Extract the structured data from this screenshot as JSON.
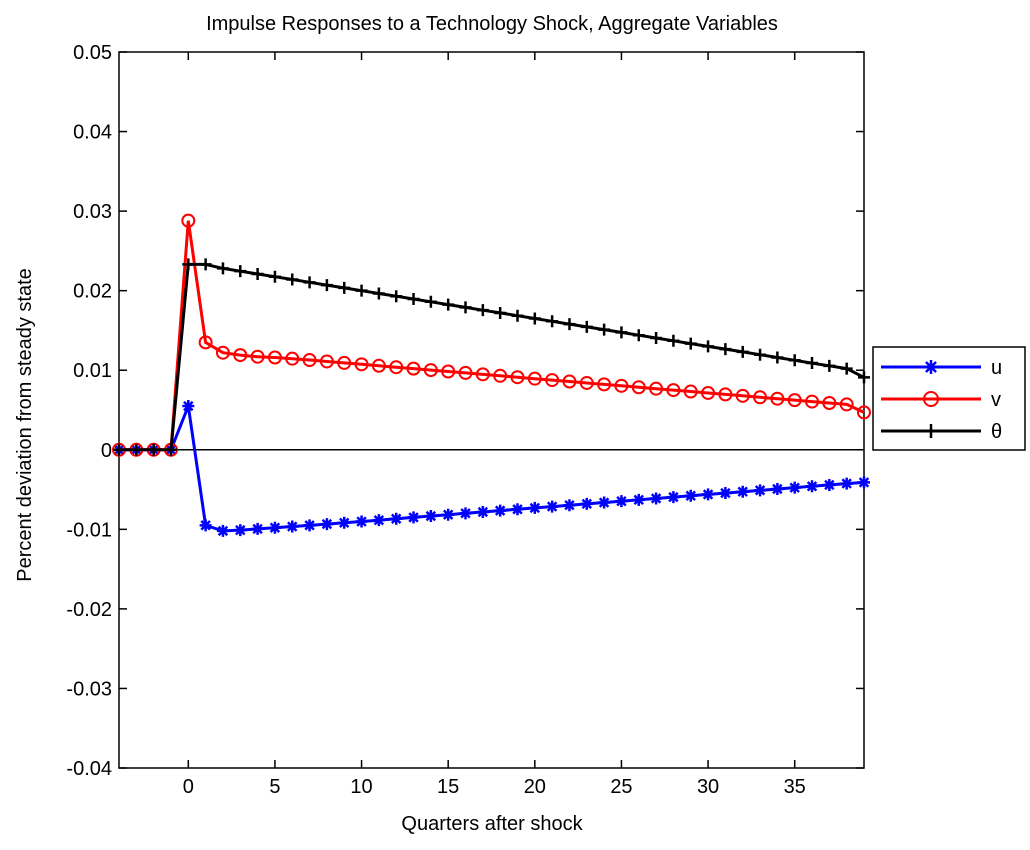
{
  "chart_data": {
    "type": "line",
    "title": "Impulse Responses to a Technology Shock, Aggregate Variables",
    "xlabel": "Quarters after shock",
    "ylabel": "Percent deviation from steady state",
    "xlim": [
      -4,
      39
    ],
    "ylim": [
      -0.04,
      0.05
    ],
    "xticks": [
      0,
      5,
      10,
      15,
      20,
      25,
      30,
      35
    ],
    "yticks": [
      -0.04,
      -0.03,
      -0.02,
      -0.01,
      0,
      0.01,
      0.02,
      0.03,
      0.04,
      0.05
    ],
    "ytick_labels": [
      "-0.04",
      "-0.03",
      "-0.02",
      "-0.01",
      "0",
      "0.01",
      "0.02",
      "0.03",
      "0.04",
      "0.05"
    ],
    "zero_line": true,
    "grid": false,
    "legend_position": "outside-right",
    "x": [
      -4,
      -3,
      -2,
      -1,
      0,
      1,
      2,
      3,
      4,
      5,
      6,
      7,
      8,
      9,
      10,
      11,
      12,
      13,
      14,
      15,
      16,
      17,
      18,
      19,
      20,
      21,
      22,
      23,
      24,
      25,
      26,
      27,
      28,
      29,
      30,
      31,
      32,
      33,
      34,
      35,
      36,
      37,
      38,
      39
    ],
    "series": [
      {
        "name": "u",
        "color": "#0000ff",
        "marker": "star",
        "values": [
          0,
          0,
          0,
          0,
          0.0055,
          -0.0095,
          -0.0102,
          -0.0101,
          -0.00995,
          -0.0098,
          -0.00965,
          -0.0095,
          -0.00934,
          -0.00918,
          -0.00902,
          -0.00885,
          -0.00867,
          -0.0085,
          -0.00833,
          -0.00816,
          -0.00799,
          -0.00782,
          -0.00765,
          -0.00748,
          -0.00731,
          -0.00714,
          -0.00697,
          -0.0068,
          -0.00663,
          -0.00646,
          -0.00629,
          -0.00612,
          -0.00595,
          -0.00578,
          -0.00561,
          -0.00544,
          -0.00527,
          -0.0051,
          -0.00493,
          -0.00476,
          -0.00459,
          -0.00442,
          -0.00425,
          -0.0041
        ]
      },
      {
        "name": "v",
        "color": "#ff0000",
        "marker": "circle",
        "values": [
          0,
          0,
          0,
          0,
          0.0288,
          0.0135,
          0.0122,
          0.0119,
          0.0117,
          0.0116,
          0.01145,
          0.01128,
          0.0111,
          0.01092,
          0.01074,
          0.01056,
          0.01038,
          0.0102,
          0.01002,
          0.00984,
          0.00966,
          0.00948,
          0.0093,
          0.00912,
          0.00894,
          0.00876,
          0.00858,
          0.0084,
          0.00822,
          0.00804,
          0.00786,
          0.00768,
          0.0075,
          0.00732,
          0.00714,
          0.00696,
          0.00678,
          0.0066,
          0.00642,
          0.00624,
          0.00606,
          0.00588,
          0.0057,
          0.0047
        ]
      },
      {
        "name": "θ",
        "color": "#000000",
        "marker": "plus",
        "values": [
          0,
          0,
          0,
          0,
          0.0233,
          0.0233,
          0.0228,
          0.02245,
          0.0221,
          0.02175,
          0.0214,
          0.02105,
          0.0207,
          0.02035,
          0.02,
          0.01965,
          0.0193,
          0.01895,
          0.0186,
          0.01825,
          0.0179,
          0.01755,
          0.0172,
          0.01685,
          0.0165,
          0.01615,
          0.0158,
          0.01545,
          0.0151,
          0.01475,
          0.0144,
          0.01405,
          0.0137,
          0.01335,
          0.013,
          0.01265,
          0.0123,
          0.01195,
          0.0116,
          0.01125,
          0.0109,
          0.01055,
          0.0102,
          0.0091
        ]
      }
    ]
  }
}
